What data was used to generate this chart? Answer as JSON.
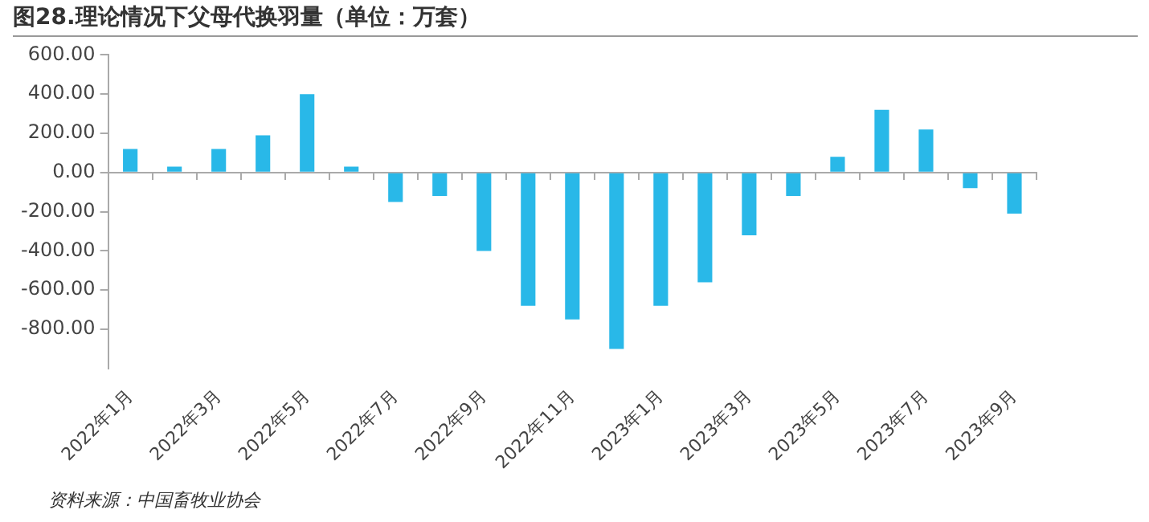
{
  "chart_data": {
    "type": "bar",
    "title": "图28.理论情况下父母代换羽量（单位：万套）",
    "categories": [
      "2022年1月",
      null,
      "2022年3月",
      null,
      "2022年5月",
      null,
      "2022年7月",
      null,
      "2022年9月",
      null,
      "2022年11月",
      null,
      "2023年1月",
      null,
      "2023年3月",
      null,
      "2023年5月",
      null,
      "2023年7月",
      null,
      "2023年9月"
    ],
    "values": [
      120,
      30,
      120,
      190,
      400,
      30,
      -150,
      -120,
      -400,
      -680,
      -750,
      -900,
      -680,
      -560,
      -320,
      -120,
      80,
      320,
      220,
      -80,
      -210
    ],
    "color": "#29b8e8",
    "ylim": [
      -1000,
      600
    ],
    "yticks": [
      {
        "value": 600,
        "label": "600.00"
      },
      {
        "value": 400,
        "label": "400.00"
      },
      {
        "value": 200,
        "label": "200.00"
      },
      {
        "value": 0,
        "label": "0.00"
      },
      {
        "value": -200,
        "label": "-200.00"
      },
      {
        "value": -400,
        "label": "-400.00"
      },
      {
        "value": -600,
        "label": "-600.00"
      },
      {
        "value": -800,
        "label": "-800.00"
      }
    ],
    "legend": false,
    "annotations": [
      "资料来源：中国畜牧业协会"
    ]
  }
}
